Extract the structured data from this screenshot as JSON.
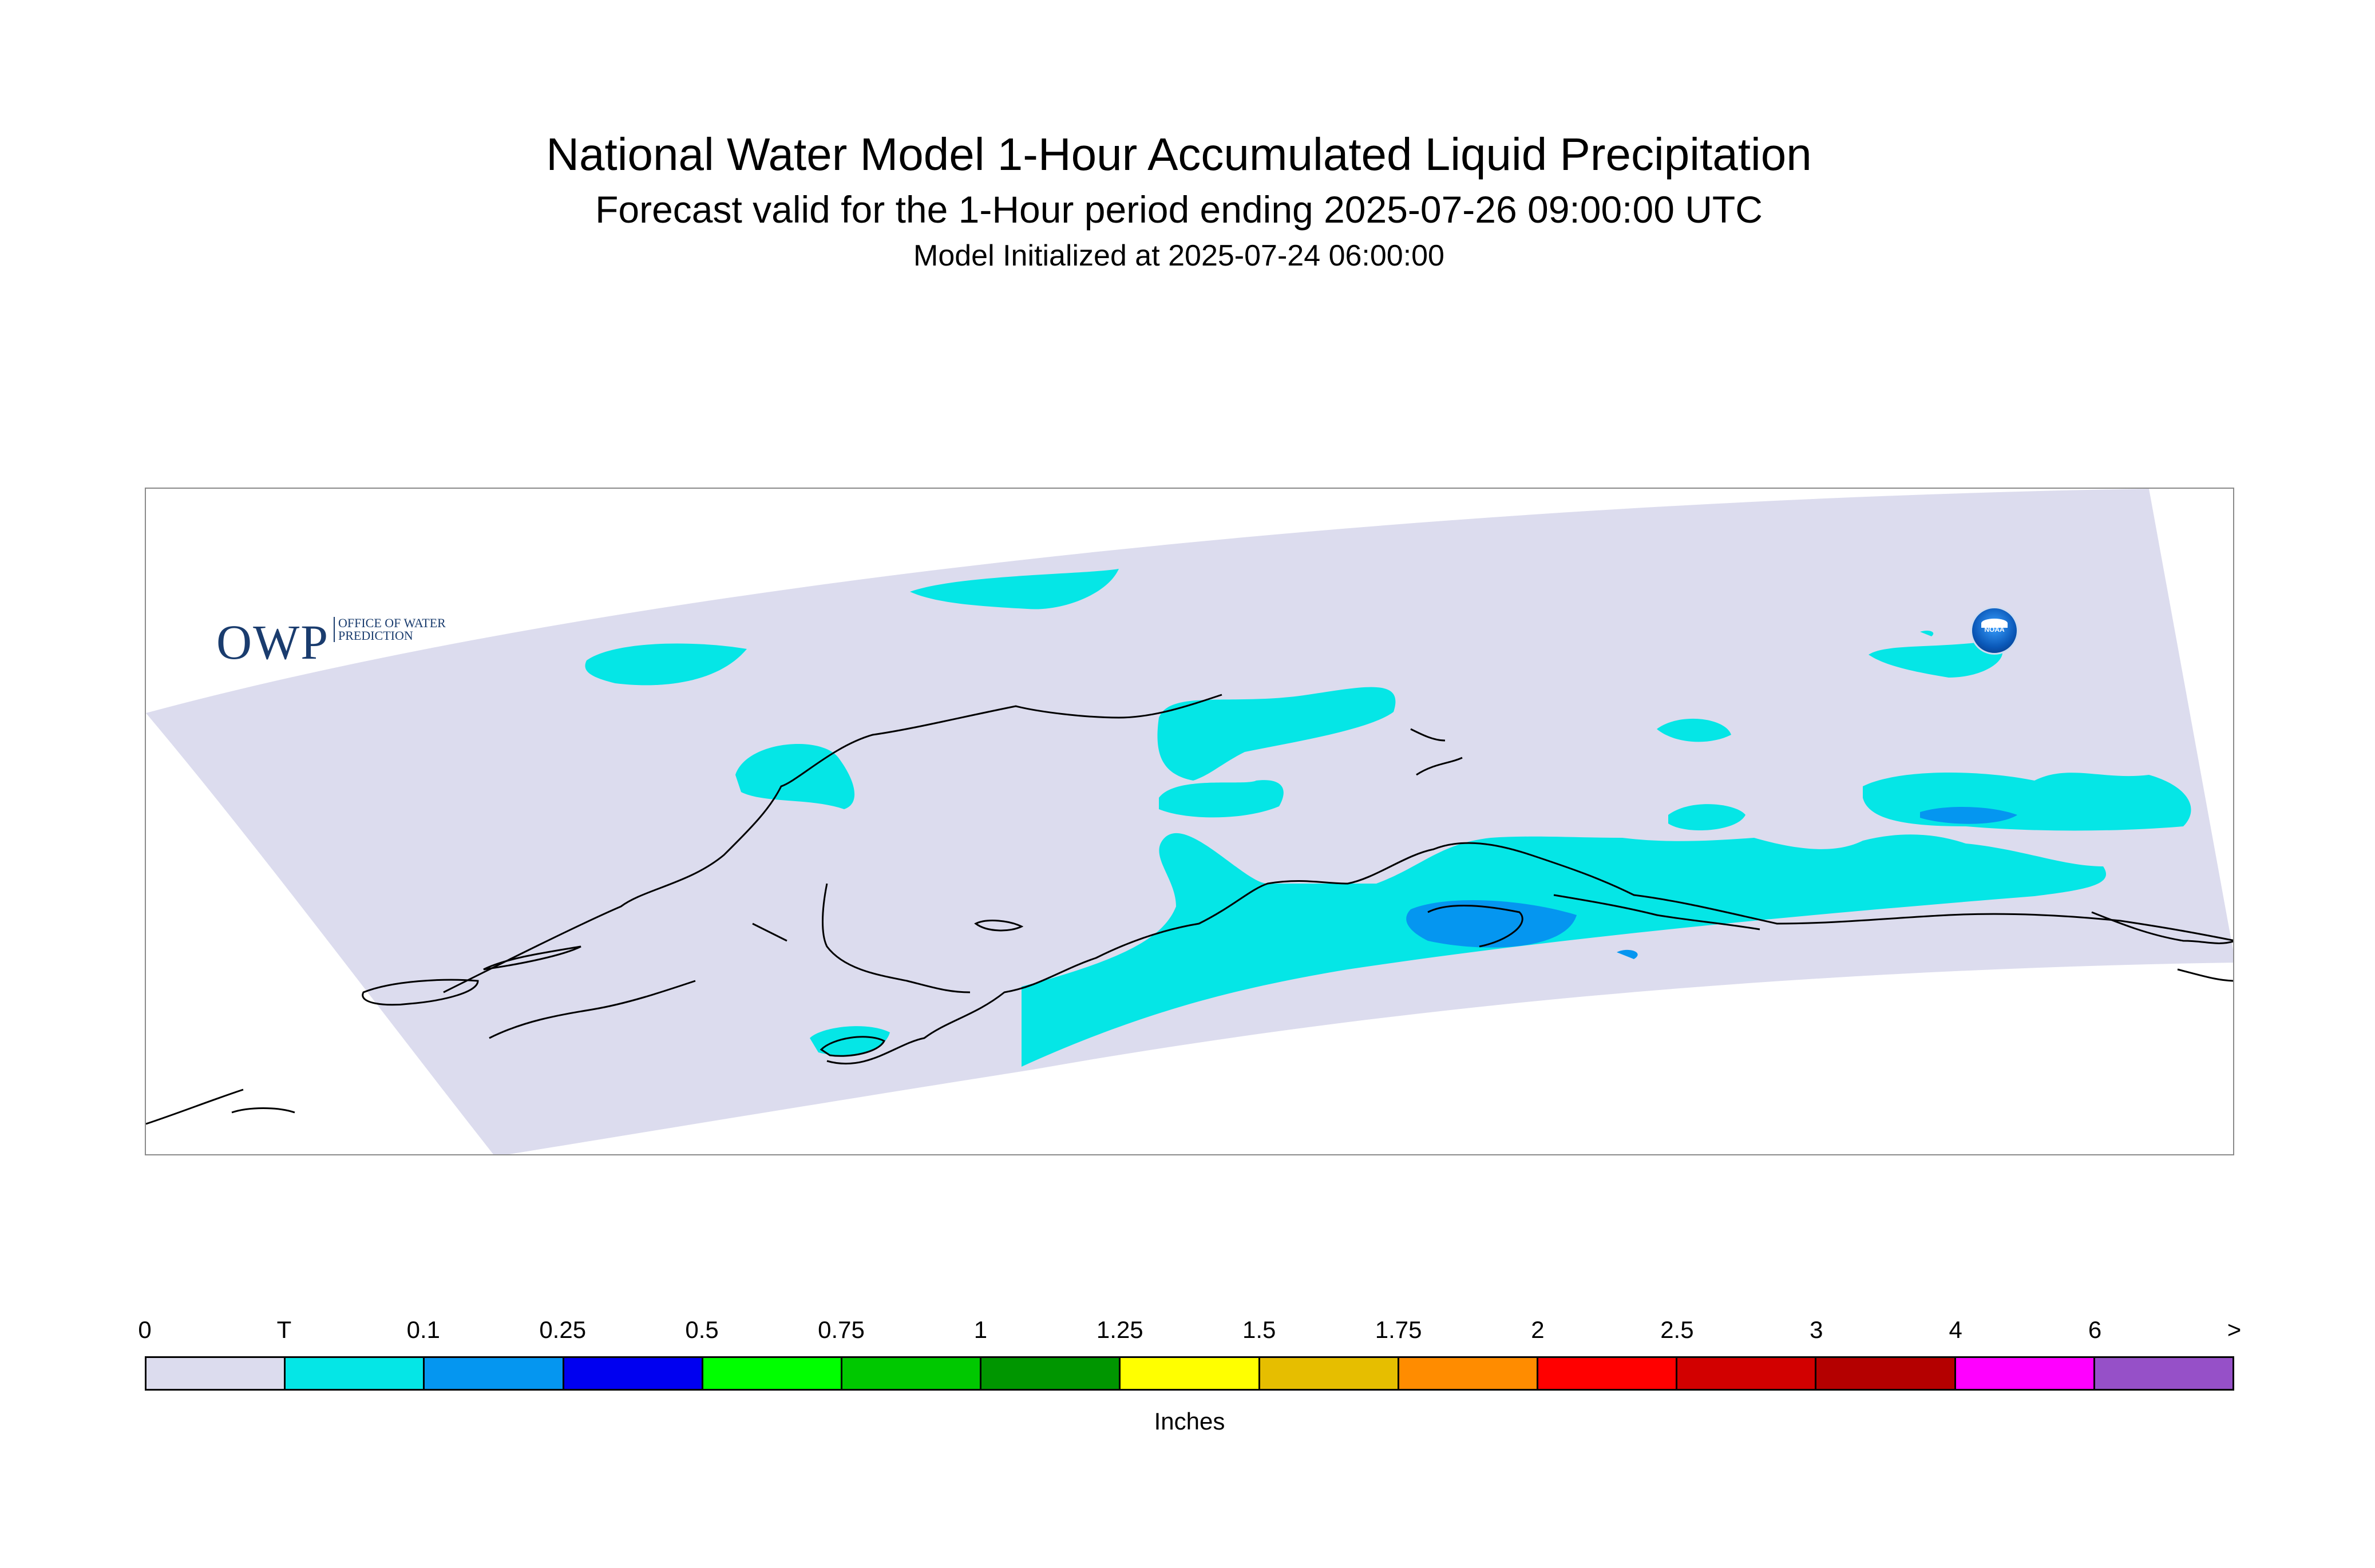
{
  "title": "National Water Model 1-Hour Accumulated Liquid Precipitation",
  "subtitle": "Forecast valid for the 1-Hour period ending 2025-07-26 09:00:00 UTC",
  "init_line": "Model Initialized at 2025-07-24 06:00:00",
  "logos": {
    "owp_letters": "OWP",
    "owp_sub": "OFFICE OF WATER PREDICTION",
    "noaa": "NOAA"
  },
  "legend": {
    "labels": [
      "0",
      "T",
      "0.1",
      "0.25",
      "0.5",
      "0.75",
      "1",
      "1.25",
      "1.5",
      "1.75",
      "2",
      "2.5",
      "3",
      "4",
      "6",
      ">"
    ],
    "colors": [
      "#dcdcee",
      "#05e6e6",
      "#0596f0",
      "#0000f0",
      "#00ff00",
      "#00c800",
      "#009600",
      "#ffff00",
      "#e6be00",
      "#ff8c00",
      "#ff0000",
      "#d20000",
      "#b40000",
      "#ff00ff",
      "#9650c8"
    ],
    "units": "Inches"
  },
  "map": {
    "region": "Alaska",
    "colors": {
      "domain": "#dcdcee",
      "trace": "#05e6e6",
      "light": "#0596f0",
      "coast": "#000000"
    }
  }
}
